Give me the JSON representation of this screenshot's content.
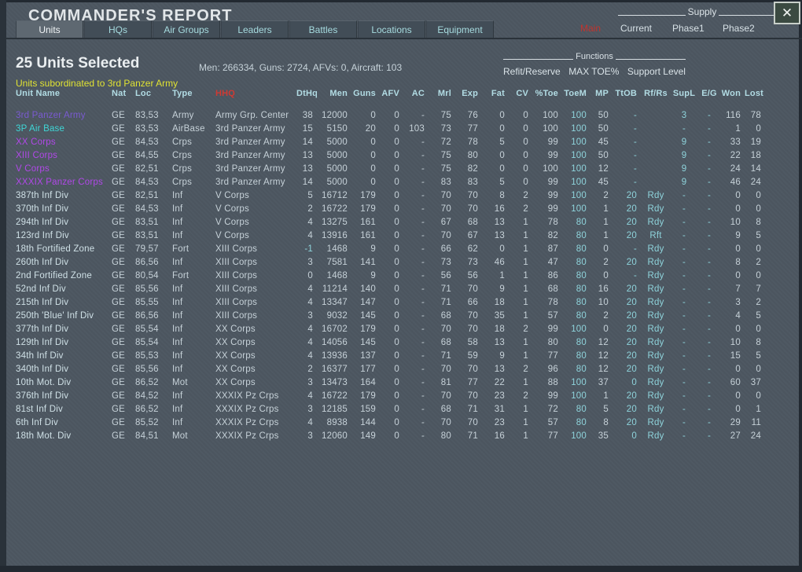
{
  "window": {
    "title": "COMMANDER'S REPORT"
  },
  "icons": {
    "close": "✕"
  },
  "supply": {
    "label": "Supply",
    "main_label": "Main",
    "options": [
      "Current",
      "Phase1",
      "Phase2"
    ]
  },
  "tabs": [
    {
      "label": "Units",
      "selected": true
    },
    {
      "label": "HQs",
      "selected": false
    },
    {
      "label": "Air Groups",
      "selected": false
    },
    {
      "label": "Leaders",
      "selected": false
    },
    {
      "label": "Battles",
      "selected": false
    },
    {
      "label": "Locations",
      "selected": false
    },
    {
      "label": "Equipment",
      "selected": false
    }
  ],
  "summary": {
    "selected": "25 Units Selected",
    "stats": "Men: 266334, Guns: 2724, AFVs: 0, Aircraft: 103",
    "subtitle": "Units subordinated to 3rd Panzer Army"
  },
  "functions": {
    "label": "Functions",
    "buttons": [
      "Refit/Reserve",
      "MAX TOE%",
      "Support Level"
    ]
  },
  "colors": {
    "background": "#4d5761",
    "hhq_header": "#cf3a33",
    "main_red": "#c2332d",
    "yellow": "#e0e233",
    "name_army": "#7a5ad0",
    "name_corps": "#b148e8",
    "name_airbase": "#3fd6d6",
    "name_normal": "#cfe0e6",
    "value": "#c6d1d8",
    "value_cyan": "#8ed3db"
  },
  "table": {
    "columns": [
      "Unit Name",
      "Nat",
      "Loc",
      "Type",
      "HHQ",
      "DtHq",
      "Men",
      "Guns",
      "AFV",
      "AC",
      "Mrl",
      "Exp",
      "Fat",
      "CV",
      "%Toe",
      "ToeM",
      "MP",
      "TtOB",
      "Rf/Rs",
      "SupL",
      "E/G",
      "Won",
      "Lost"
    ],
    "rows": [
      {
        "name": "3rd Panzer Army",
        "style": "army",
        "cells": [
          "GE",
          "83,53",
          "Army",
          "Army Grp. Center",
          "38",
          "12000",
          "0",
          "0",
          "-",
          "75",
          "76",
          "0",
          "0",
          "100",
          "100",
          "50",
          "-",
          "",
          "3",
          "-",
          "116",
          "78"
        ]
      },
      {
        "name": "3P Air Base",
        "style": "airbase",
        "cells": [
          "GE",
          "83,53",
          "AirBase",
          "3rd Panzer Army",
          "15",
          "5150",
          "20",
          "0",
          "103",
          "73",
          "77",
          "0",
          "0",
          "100",
          "100",
          "50",
          "-",
          "",
          "-",
          "-",
          "1",
          "0"
        ]
      },
      {
        "name": "XX Corps",
        "style": "corps",
        "cells": [
          "GE",
          "84,53",
          "Crps",
          "3rd Panzer Army",
          "14",
          "5000",
          "0",
          "0",
          "-",
          "72",
          "78",
          "5",
          "0",
          "99",
          "100",
          "45",
          "-",
          "",
          "9",
          "-",
          "33",
          "19"
        ]
      },
      {
        "name": "XIII Corps",
        "style": "corps",
        "cells": [
          "GE",
          "84,55",
          "Crps",
          "3rd Panzer Army",
          "13",
          "5000",
          "0",
          "0",
          "-",
          "75",
          "80",
          "0",
          "0",
          "99",
          "100",
          "50",
          "-",
          "",
          "9",
          "-",
          "22",
          "18"
        ]
      },
      {
        "name": "V Corps",
        "style": "corps",
        "cells": [
          "GE",
          "82,51",
          "Crps",
          "3rd Panzer Army",
          "13",
          "5000",
          "0",
          "0",
          "-",
          "75",
          "82",
          "0",
          "0",
          "100",
          "100",
          "12",
          "-",
          "",
          "9",
          "-",
          "24",
          "14"
        ]
      },
      {
        "name": "XXXIX Panzer Corps",
        "style": "corps",
        "cells": [
          "GE",
          "84,53",
          "Crps",
          "3rd Panzer Army",
          "14",
          "5000",
          "0",
          "0",
          "-",
          "83",
          "83",
          "5",
          "0",
          "99",
          "100",
          "45",
          "-",
          "",
          "9",
          "-",
          "46",
          "24"
        ]
      },
      {
        "name": "387th Inf Div",
        "style": "normal",
        "cells": [
          "GE",
          "82,51",
          "Inf",
          "V Corps",
          "5",
          "16712",
          "179",
          "0",
          "-",
          "70",
          "70",
          "8",
          "2",
          "99",
          "100",
          "2",
          "20",
          "Rdy",
          "-",
          "-",
          "0",
          "0"
        ]
      },
      {
        "name": "370th Inf Div",
        "style": "normal",
        "cells": [
          "GE",
          "84,53",
          "Inf",
          "V Corps",
          "2",
          "16722",
          "179",
          "0",
          "-",
          "70",
          "70",
          "16",
          "2",
          "99",
          "100",
          "1",
          "20",
          "Rdy",
          "-",
          "-",
          "0",
          "0"
        ]
      },
      {
        "name": "294th Inf Div",
        "style": "normal",
        "cells": [
          "GE",
          "83,51",
          "Inf",
          "V Corps",
          "4",
          "13275",
          "161",
          "0",
          "-",
          "67",
          "68",
          "13",
          "1",
          "78",
          "80",
          "1",
          "20",
          "Rdy",
          "-",
          "-",
          "10",
          "8"
        ]
      },
      {
        "name": "123rd Inf Div",
        "style": "normal",
        "cells": [
          "GE",
          "83,51",
          "Inf",
          "V Corps",
          "4",
          "13916",
          "161",
          "0",
          "-",
          "70",
          "67",
          "13",
          "1",
          "82",
          "80",
          "1",
          "20",
          "Rft",
          "-",
          "-",
          "9",
          "5"
        ]
      },
      {
        "name": "18th Fortified Zone",
        "style": "normal",
        "cells": [
          "GE",
          "79,57",
          "Fort",
          "XIII Corps",
          "-1",
          "1468",
          "9",
          "0",
          "-",
          "66",
          "62",
          "0",
          "1",
          "87",
          "80",
          "0",
          "-",
          "Rdy",
          "-",
          "-",
          "0",
          "0"
        ]
      },
      {
        "name": "260th Inf Div",
        "style": "normal",
        "cells": [
          "GE",
          "86,56",
          "Inf",
          "XIII Corps",
          "3",
          "7581",
          "141",
          "0",
          "-",
          "73",
          "73",
          "46",
          "1",
          "47",
          "80",
          "2",
          "20",
          "Rdy",
          "-",
          "-",
          "8",
          "2"
        ]
      },
      {
        "name": "2nd Fortified Zone",
        "style": "normal",
        "cells": [
          "GE",
          "80,54",
          "Fort",
          "XIII Corps",
          "0",
          "1468",
          "9",
          "0",
          "-",
          "56",
          "56",
          "1",
          "1",
          "86",
          "80",
          "0",
          "-",
          "Rdy",
          "-",
          "-",
          "0",
          "0"
        ]
      },
      {
        "name": "52nd Inf Div",
        "style": "normal",
        "cells": [
          "GE",
          "85,56",
          "Inf",
          "XIII Corps",
          "4",
          "11214",
          "140",
          "0",
          "-",
          "71",
          "70",
          "9",
          "1",
          "68",
          "80",
          "16",
          "20",
          "Rdy",
          "-",
          "-",
          "7",
          "7"
        ]
      },
      {
        "name": "215th Inf Div",
        "style": "normal",
        "cells": [
          "GE",
          "85,55",
          "Inf",
          "XIII Corps",
          "4",
          "13347",
          "147",
          "0",
          "-",
          "71",
          "66",
          "18",
          "1",
          "78",
          "80",
          "10",
          "20",
          "Rdy",
          "-",
          "-",
          "3",
          "2"
        ]
      },
      {
        "name": "250th 'Blue' Inf Div",
        "style": "normal",
        "cells": [
          "GE",
          "86,56",
          "Inf",
          "XIII Corps",
          "3",
          "9032",
          "145",
          "0",
          "-",
          "68",
          "70",
          "35",
          "1",
          "57",
          "80",
          "2",
          "20",
          "Rdy",
          "-",
          "-",
          "4",
          "5"
        ]
      },
      {
        "name": "377th Inf Div",
        "style": "normal",
        "cells": [
          "GE",
          "85,54",
          "Inf",
          "XX Corps",
          "4",
          "16702",
          "179",
          "0",
          "-",
          "70",
          "70",
          "18",
          "2",
          "99",
          "100",
          "0",
          "20",
          "Rdy",
          "-",
          "-",
          "0",
          "0"
        ]
      },
      {
        "name": "129th Inf Div",
        "style": "normal",
        "cells": [
          "GE",
          "85,54",
          "Inf",
          "XX Corps",
          "4",
          "14056",
          "145",
          "0",
          "-",
          "68",
          "58",
          "13",
          "1",
          "80",
          "80",
          "12",
          "20",
          "Rdy",
          "-",
          "-",
          "10",
          "8"
        ]
      },
      {
        "name": "34th Inf Div",
        "style": "normal",
        "cells": [
          "GE",
          "85,53",
          "Inf",
          "XX Corps",
          "4",
          "13936",
          "137",
          "0",
          "-",
          "71",
          "59",
          "9",
          "1",
          "77",
          "80",
          "12",
          "20",
          "Rdy",
          "-",
          "-",
          "15",
          "5"
        ]
      },
      {
        "name": "340th Inf Div",
        "style": "normal",
        "cells": [
          "GE",
          "85,56",
          "Inf",
          "XX Corps",
          "2",
          "16377",
          "177",
          "0",
          "-",
          "70",
          "70",
          "13",
          "2",
          "96",
          "80",
          "12",
          "20",
          "Rdy",
          "-",
          "-",
          "0",
          "0"
        ]
      },
      {
        "name": "10th Mot. Div",
        "style": "normal",
        "cells": [
          "GE",
          "86,52",
          "Mot",
          "XX Corps",
          "3",
          "13473",
          "164",
          "0",
          "-",
          "81",
          "77",
          "22",
          "1",
          "88",
          "100",
          "37",
          "0",
          "Rdy",
          "-",
          "-",
          "60",
          "37"
        ]
      },
      {
        "name": "376th Inf Div",
        "style": "normal",
        "cells": [
          "GE",
          "84,52",
          "Inf",
          "XXXIX Pz Crps",
          "4",
          "16722",
          "179",
          "0",
          "-",
          "70",
          "70",
          "23",
          "2",
          "99",
          "100",
          "1",
          "20",
          "Rdy",
          "-",
          "-",
          "0",
          "0"
        ]
      },
      {
        "name": "81st Inf Div",
        "style": "normal",
        "cells": [
          "GE",
          "86,52",
          "Inf",
          "XXXIX Pz Crps",
          "3",
          "12185",
          "159",
          "0",
          "-",
          "68",
          "71",
          "31",
          "1",
          "72",
          "80",
          "5",
          "20",
          "Rdy",
          "-",
          "-",
          "0",
          "1"
        ]
      },
      {
        "name": "6th Inf Div",
        "style": "normal",
        "cells": [
          "GE",
          "85,52",
          "Inf",
          "XXXIX Pz Crps",
          "4",
          "8938",
          "144",
          "0",
          "-",
          "70",
          "70",
          "23",
          "1",
          "57",
          "80",
          "8",
          "20",
          "Rdy",
          "-",
          "-",
          "29",
          "11"
        ]
      },
      {
        "name": "18th Mot. Div",
        "style": "normal",
        "cells": [
          "GE",
          "84,51",
          "Mot",
          "XXXIX Pz Crps",
          "3",
          "12060",
          "149",
          "0",
          "-",
          "80",
          "71",
          "16",
          "1",
          "77",
          "100",
          "35",
          "0",
          "Rdy",
          "-",
          "-",
          "27",
          "24"
        ]
      }
    ]
  }
}
